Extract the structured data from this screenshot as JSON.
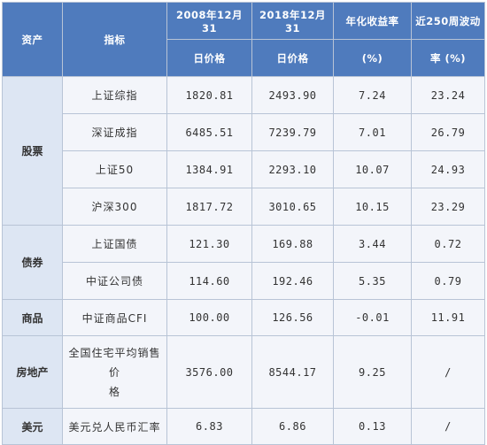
{
  "header": {
    "asset": "资产",
    "indicator": "指标",
    "price2008_line1": "2008年12月31",
    "price2008_line2": "日价格",
    "price2018_line1": "2018年12月31",
    "price2018_line2": "日价格",
    "return_line1": "年化收益率",
    "return_line2": "(%)",
    "vol_line1": "近250周波动",
    "vol_line2": "率 (%)"
  },
  "groups": [
    {
      "asset": "股票",
      "rows": [
        {
          "indicator": "上证综指",
          "p2008": "1820.81",
          "p2018": "2493.90",
          "ret": "7.24",
          "vol": "23.24"
        },
        {
          "indicator": "深证成指",
          "p2008": "6485.51",
          "p2018": "7239.79",
          "ret": "7.01",
          "vol": "26.79"
        },
        {
          "indicator": "上证50",
          "p2008": "1384.91",
          "p2018": "2293.10",
          "ret": "10.07",
          "vol": "24.93"
        },
        {
          "indicator": "沪深300",
          "p2008": "1817.72",
          "p2018": "3010.65",
          "ret": "10.15",
          "vol": "23.29"
        }
      ]
    },
    {
      "asset": "债券",
      "rows": [
        {
          "indicator": "上证国债",
          "p2008": "121.30",
          "p2018": "169.88",
          "ret": "3.44",
          "vol": "0.72"
        },
        {
          "indicator": "中证公司债",
          "p2008": "114.60",
          "p2018": "192.46",
          "ret": "5.35",
          "vol": "0.79"
        }
      ]
    },
    {
      "asset": "商品",
      "rows": [
        {
          "indicator": "中证商品CFI",
          "p2008": "100.00",
          "p2018": "126.56",
          "ret": "-0.01",
          "vol": "11.91"
        }
      ]
    },
    {
      "asset": "房地产",
      "rows": [
        {
          "indicator_line1": "全国住宅平均销售价",
          "indicator_line2": "格",
          "p2008": "3576.00",
          "p2018": "8544.17",
          "ret": "9.25",
          "vol": "/"
        }
      ]
    },
    {
      "asset": "美元",
      "rows": [
        {
          "indicator": "美元兑人民币汇率",
          "p2008": "6.83",
          "p2018": "6.86",
          "ret": "0.13",
          "vol": "/"
        }
      ]
    }
  ]
}
